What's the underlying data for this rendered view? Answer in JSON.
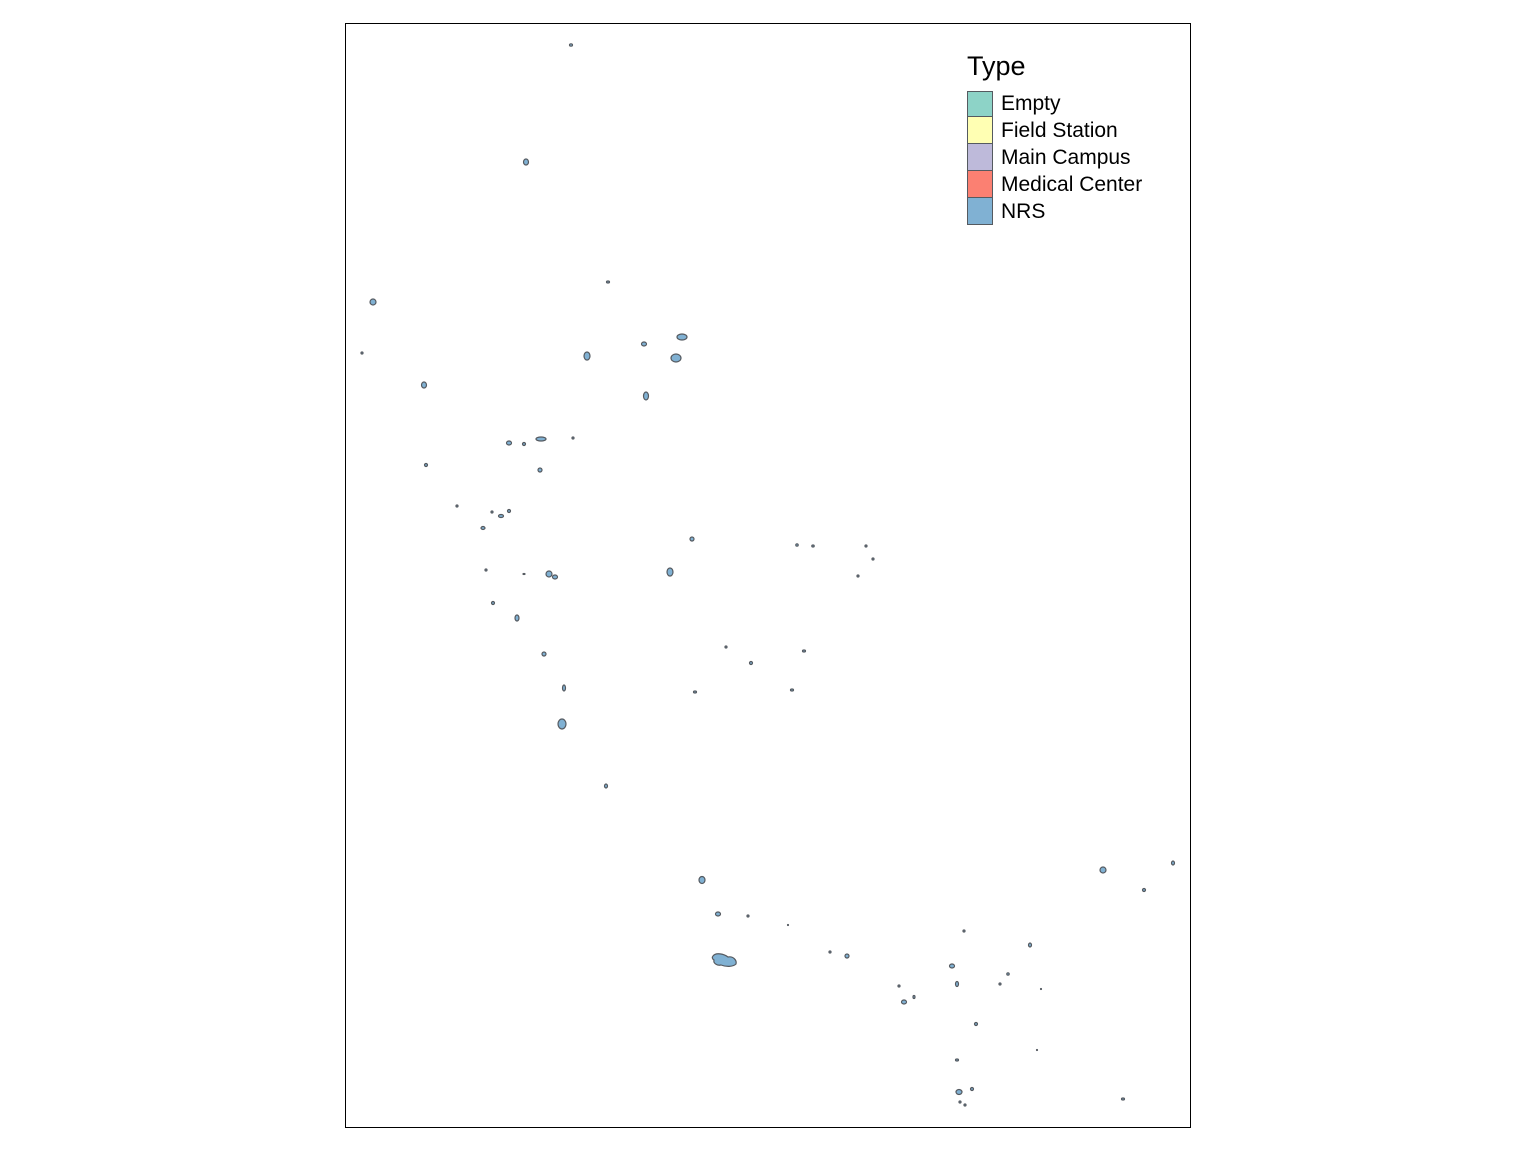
{
  "legend": {
    "title": "Type",
    "items": [
      {
        "label": "Empty",
        "color": "#8dd3c7"
      },
      {
        "label": "Field Station",
        "color": "#ffffb3"
      },
      {
        "label": "Main Campus",
        "color": "#bebada"
      },
      {
        "label": "Medical Center",
        "color": "#fb8072"
      },
      {
        "label": "NRS",
        "color": "#80b1d3"
      }
    ]
  },
  "map": {
    "outline_color": "#555a60",
    "feature_fill": "#80b1d3"
  }
}
